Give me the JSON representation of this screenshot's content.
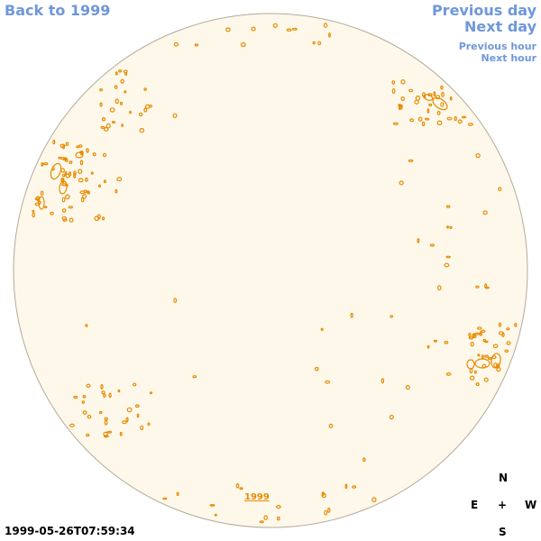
{
  "nav": {
    "back_label": "Back to 1999",
    "prev_day_label": "Previous day",
    "next_day_label": "Next day",
    "prev_hour_label": "Previous hour",
    "next_hour_label": "Next hour"
  },
  "year_link_label": "1999",
  "timestamp": "1999-05-26T07:59:34",
  "compass": {
    "north": "N",
    "south": "S",
    "east": "E",
    "west": "W",
    "center": "+"
  },
  "colors": {
    "disk_fill": "#fdf8ea",
    "disk_stroke": "#b3ab9c",
    "contour": "#e88a00",
    "link": "#6f97dc"
  }
}
